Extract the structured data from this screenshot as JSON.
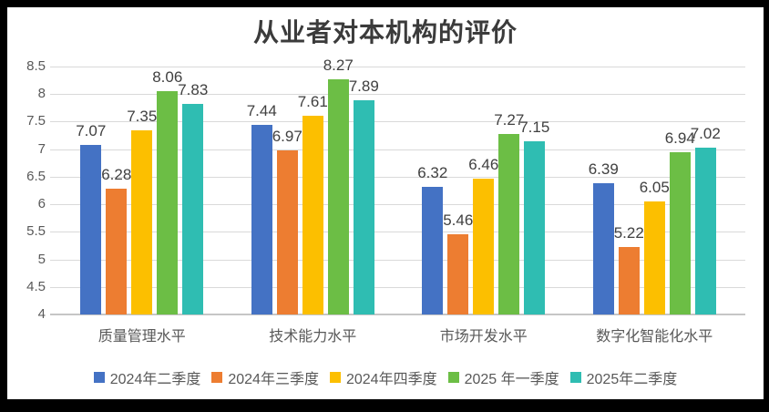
{
  "frame": {
    "border_color": "#000000",
    "chart_background": "#ffffff"
  },
  "colors": {
    "grid": "#d9d9d9",
    "axis_line": "#c6c6c6",
    "tick_text": "#595959",
    "category_text": "#595959",
    "value_label_text": "#404040",
    "title_text": "#3b3b3b",
    "legend_text": "#595959"
  },
  "chart_data": {
    "type": "bar",
    "title": "从业者对本机构的评价",
    "categories": [
      "质量管理水平",
      "技术能力水平",
      "市场开发水平",
      "数字化智能化水平"
    ],
    "series": [
      {
        "name": "2024年二季度",
        "color": "#4472C4",
        "values": [
          7.07,
          7.44,
          6.32,
          6.39
        ]
      },
      {
        "name": "2024年三季度",
        "color": "#ED7D31",
        "values": [
          6.28,
          6.97,
          5.46,
          5.22
        ]
      },
      {
        "name": "2024年四季度",
        "color": "#FCBF00",
        "values": [
          7.35,
          7.61,
          6.46,
          6.05
        ]
      },
      {
        "name": "2025 年一季度",
        "color": "#6CBE45",
        "values": [
          8.06,
          8.27,
          7.27,
          6.94
        ]
      },
      {
        "name": "2025年二季度",
        "color": "#2FBDB2",
        "values": [
          7.83,
          7.89,
          7.15,
          7.02
        ]
      }
    ],
    "ylim": [
      4,
      8.5
    ],
    "ytick_step": 0.5,
    "ytick_labels": [
      "8.5",
      "8",
      "7.5",
      "7",
      "6.5",
      "6",
      "5.5",
      "5",
      "4.5",
      "4"
    ],
    "grid": true,
    "value_labels_shown": true,
    "legend_position": "bottom",
    "xlabel": "",
    "ylabel": ""
  }
}
